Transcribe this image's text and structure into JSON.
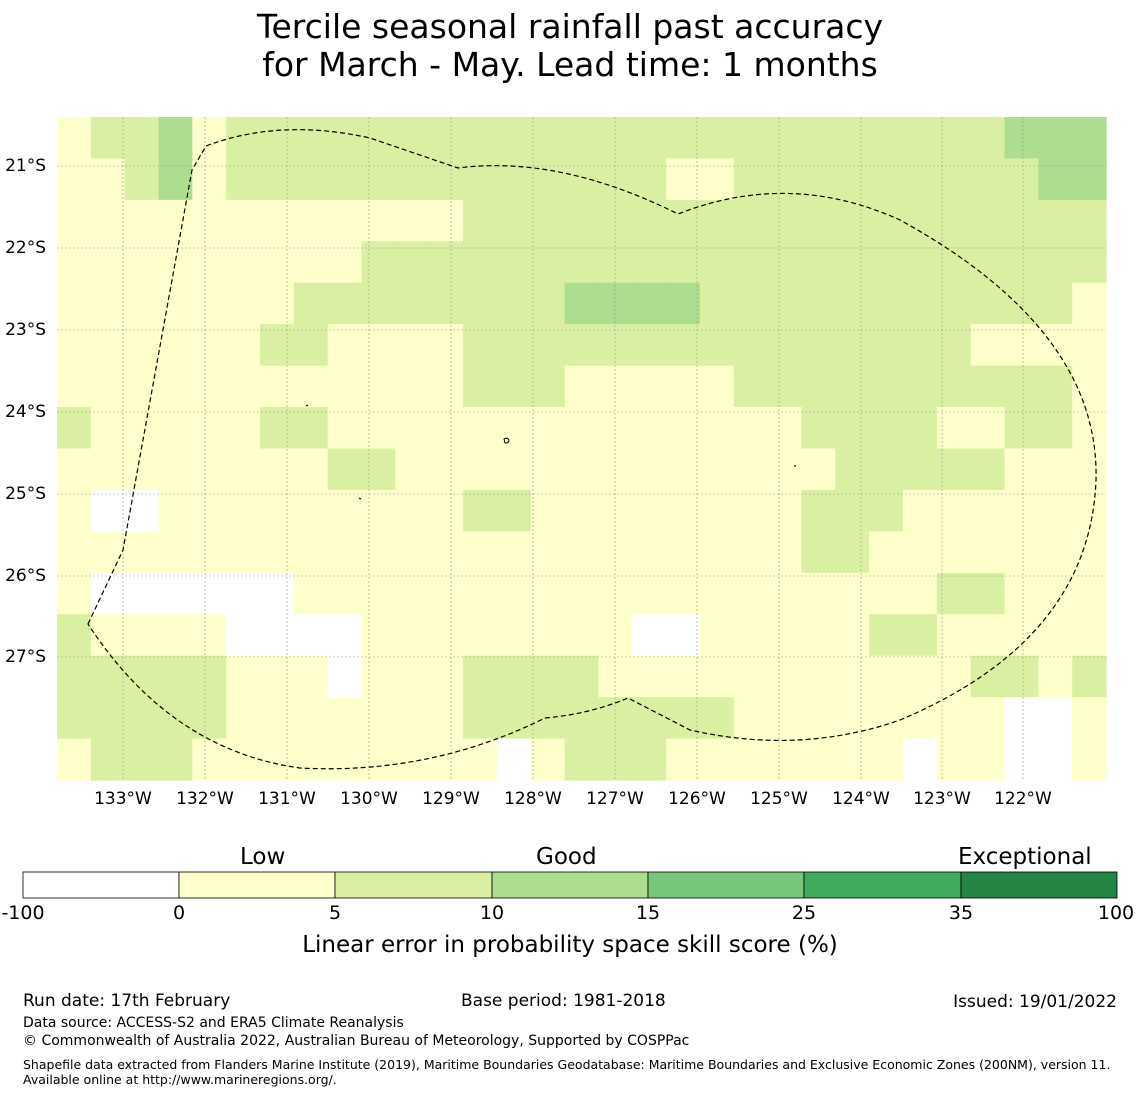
{
  "title": {
    "line1": "Tercile seasonal rainfall past accuracy",
    "line2": "for March - May. Lead time: 1 months"
  },
  "map": {
    "lat_labels": [
      "21°S",
      "22°S",
      "23°S",
      "24°S",
      "25°S",
      "26°S",
      "27°S"
    ],
    "lon_labels": [
      "133°W",
      "132°W",
      "131°W",
      "130°W",
      "129°W",
      "128°W",
      "127°W",
      "126°W",
      "125°W",
      "124°W",
      "123°W",
      "122°W"
    ],
    "grid_note": "Skill category per grid cell (row 0 = north): 0 = below 0, 1 = 0-5, 2 = 5-10, 3 = 10-15",
    "cells": [
      [
        1,
        2,
        2,
        3,
        1,
        2,
        2,
        2,
        2,
        2,
        2,
        2,
        2,
        2,
        2,
        2,
        2,
        2,
        2,
        2,
        2,
        2,
        2,
        2,
        2,
        2,
        2,
        2,
        3,
        3,
        3
      ],
      [
        1,
        1,
        2,
        3,
        1,
        2,
        2,
        2,
        2,
        2,
        2,
        2,
        2,
        2,
        2,
        2,
        2,
        2,
        1,
        1,
        2,
        2,
        2,
        2,
        2,
        2,
        2,
        2,
        2,
        3,
        3
      ],
      [
        1,
        1,
        1,
        1,
        1,
        1,
        1,
        1,
        1,
        1,
        1,
        1,
        2,
        2,
        2,
        2,
        2,
        2,
        2,
        2,
        2,
        2,
        2,
        2,
        2,
        2,
        2,
        2,
        2,
        2,
        2
      ],
      [
        1,
        1,
        1,
        1,
        1,
        1,
        1,
        1,
        1,
        2,
        2,
        2,
        2,
        2,
        2,
        2,
        2,
        2,
        2,
        2,
        2,
        2,
        2,
        2,
        2,
        2,
        2,
        2,
        2,
        2,
        2
      ],
      [
        1,
        1,
        1,
        1,
        1,
        1,
        1,
        2,
        2,
        2,
        2,
        2,
        2,
        2,
        2,
        3,
        3,
        3,
        3,
        2,
        2,
        2,
        2,
        2,
        2,
        2,
        2,
        2,
        2,
        2,
        1
      ],
      [
        1,
        1,
        1,
        1,
        1,
        1,
        2,
        2,
        1,
        1,
        1,
        1,
        2,
        2,
        2,
        2,
        2,
        2,
        2,
        2,
        2,
        2,
        2,
        2,
        2,
        2,
        2,
        1,
        1,
        1,
        1
      ],
      [
        1,
        1,
        1,
        1,
        1,
        1,
        1,
        1,
        1,
        1,
        1,
        1,
        2,
        2,
        2,
        1,
        1,
        1,
        1,
        1,
        2,
        2,
        2,
        2,
        2,
        2,
        2,
        2,
        2,
        2,
        1
      ],
      [
        2,
        1,
        1,
        1,
        1,
        1,
        2,
        2,
        1,
        1,
        1,
        1,
        1,
        1,
        1,
        1,
        1,
        1,
        1,
        1,
        1,
        1,
        2,
        2,
        2,
        2,
        1,
        1,
        2,
        2,
        1
      ],
      [
        1,
        1,
        1,
        1,
        1,
        1,
        1,
        1,
        2,
        2,
        1,
        1,
        1,
        1,
        1,
        1,
        1,
        1,
        1,
        1,
        1,
        1,
        1,
        2,
        2,
        2,
        2,
        2,
        1,
        1,
        1
      ],
      [
        1,
        0,
        0,
        1,
        1,
        1,
        1,
        1,
        1,
        1,
        1,
        1,
        2,
        2,
        1,
        1,
        1,
        1,
        1,
        1,
        1,
        1,
        2,
        2,
        2,
        1,
        1,
        1,
        1,
        1,
        1
      ],
      [
        1,
        1,
        1,
        1,
        1,
        1,
        1,
        1,
        1,
        1,
        1,
        1,
        1,
        1,
        1,
        1,
        1,
        1,
        1,
        1,
        1,
        1,
        2,
        2,
        1,
        1,
        1,
        1,
        1,
        1,
        1
      ],
      [
        1,
        0,
        0,
        0,
        0,
        0,
        0,
        1,
        1,
        1,
        1,
        1,
        1,
        1,
        1,
        1,
        1,
        1,
        1,
        1,
        1,
        1,
        1,
        1,
        1,
        1,
        2,
        2,
        1,
        1,
        1
      ],
      [
        2,
        1,
        1,
        1,
        1,
        0,
        0,
        0,
        0,
        1,
        1,
        1,
        1,
        1,
        1,
        1,
        1,
        0,
        0,
        1,
        1,
        1,
        1,
        1,
        2,
        2,
        1,
        1,
        1,
        1,
        1
      ],
      [
        2,
        2,
        2,
        2,
        2,
        1,
        1,
        1,
        0,
        1,
        1,
        1,
        2,
        2,
        2,
        2,
        1,
        1,
        1,
        1,
        1,
        1,
        1,
        1,
        1,
        1,
        1,
        2,
        2,
        1,
        2
      ],
      [
        2,
        2,
        2,
        2,
        2,
        1,
        1,
        1,
        1,
        1,
        1,
        1,
        2,
        2,
        2,
        2,
        2,
        2,
        2,
        2,
        1,
        1,
        1,
        1,
        1,
        1,
        1,
        1,
        0,
        0,
        1
      ],
      [
        1,
        2,
        2,
        2,
        1,
        1,
        1,
        1,
        1,
        1,
        1,
        1,
        1,
        0,
        1,
        2,
        2,
        2,
        1,
        1,
        1,
        1,
        1,
        1,
        1,
        0,
        1,
        1,
        0,
        0,
        1
      ]
    ]
  },
  "colorbar": {
    "categories": [
      "Low",
      "Good",
      "Exceptional"
    ],
    "ticks": [
      "-100",
      "0",
      "5",
      "10",
      "15",
      "25",
      "35",
      "100"
    ],
    "colors": [
      "#ffffff",
      "#ffffcc",
      "#d9f0a3",
      "#addd8e",
      "#78c679",
      "#41ab5d",
      "#238443"
    ],
    "caption": "Linear error in probability space skill score (%)"
  },
  "footer": {
    "run_date": "Run date: 17th February",
    "base_period": "Base period: 1981-2018",
    "issued": "Issued: 19/01/2022",
    "data_source": "Data source: ACCESS-S2 and ERA5 Climate Reanalysis",
    "copyright": "© Commonwealth of Australia 2022, Australian Bureau of Meteorology, Supported by COSPPac",
    "shapefile": "Shapefile data extracted from Flanders Marine Institute (2019), Maritime Boundaries Geodatabase: Maritime Boundaries and Exclusive Economic Zones (200NM), version 11. Available online at http://www.marineregions.org/."
  }
}
